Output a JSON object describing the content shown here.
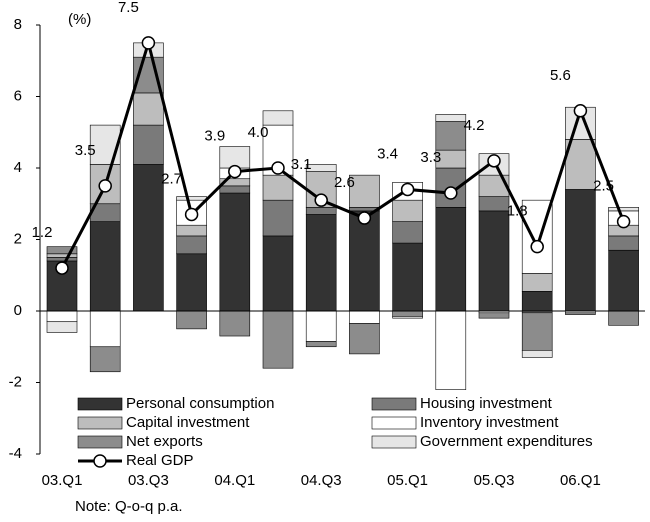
{
  "chart_data": {
    "type": "bar",
    "y_unit_label": "(%)",
    "note": "Note: Q-o-q p.a.",
    "categories": [
      "03.Q1",
      null,
      "03.Q3",
      null,
      "04.Q1",
      null,
      "04.Q3",
      null,
      "05.Q1",
      null,
      "05.Q3",
      null,
      "06.Q1",
      null
    ],
    "ylim": [
      -4,
      8
    ],
    "yticks": [
      -4,
      -2,
      0,
      2,
      4,
      6,
      8
    ],
    "series": [
      {
        "name": "Personal consumption",
        "color": "#333333",
        "values": [
          1.4,
          2.5,
          4.1,
          1.6,
          3.3,
          2.1,
          2.7,
          2.8,
          1.9,
          2.9,
          2.8,
          0.55,
          3.4,
          1.7
        ]
      },
      {
        "name": "Housing investment",
        "color": "#7a7a7a",
        "values": [
          0.1,
          0.5,
          1.1,
          0.5,
          0.2,
          1.0,
          0.2,
          0.1,
          0.6,
          1.1,
          0.4,
          -0.05,
          0,
          0.4
        ]
      },
      {
        "name": "Capital investment",
        "color": "#bdbdbd",
        "values": [
          0.1,
          1.1,
          0.9,
          0.3,
          0.2,
          0.7,
          1.0,
          0.9,
          0.6,
          0.5,
          0.6,
          0.5,
          1.4,
          0.3
        ]
      },
      {
        "name": "Inventory investment",
        "color": "#ffffff",
        "values": [
          -0.3,
          -1.0,
          0,
          0.7,
          0.3,
          1.4,
          -0.85,
          -0.35,
          0.5,
          -2.2,
          -0.05,
          2.05,
          -0.05,
          0.4
        ]
      },
      {
        "name": "Net exports",
        "color": "#8c8c8c",
        "values": [
          0.2,
          -0.7,
          1.0,
          -0.5,
          -0.7,
          -1.6,
          -0.15,
          -0.85,
          -0.15,
          0.8,
          -0.15,
          -1.05,
          -0.05,
          -0.4
        ]
      },
      {
        "name": "Government expenditures",
        "color": "#e6e6e6",
        "values": [
          -0.3,
          1.1,
          0.4,
          0.1,
          0.6,
          0.4,
          0.2,
          0,
          -0.05,
          0.2,
          0.6,
          -0.2,
          0.9,
          0.1
        ]
      }
    ],
    "line": {
      "name": "Real GDP",
      "color": "#000000",
      "values": [
        1.2,
        3.5,
        7.5,
        2.7,
        3.9,
        4.0,
        3.1,
        2.6,
        3.4,
        3.3,
        4.2,
        1.8,
        5.6,
        2.5
      ],
      "value_labels": [
        "1.2",
        "3.5",
        "7.5",
        "2.7",
        "3.9",
        "4.0",
        "3.1",
        "2.6",
        "3.4",
        "3.3",
        "4.2",
        "1.8",
        "5.6",
        "2.5"
      ]
    }
  }
}
